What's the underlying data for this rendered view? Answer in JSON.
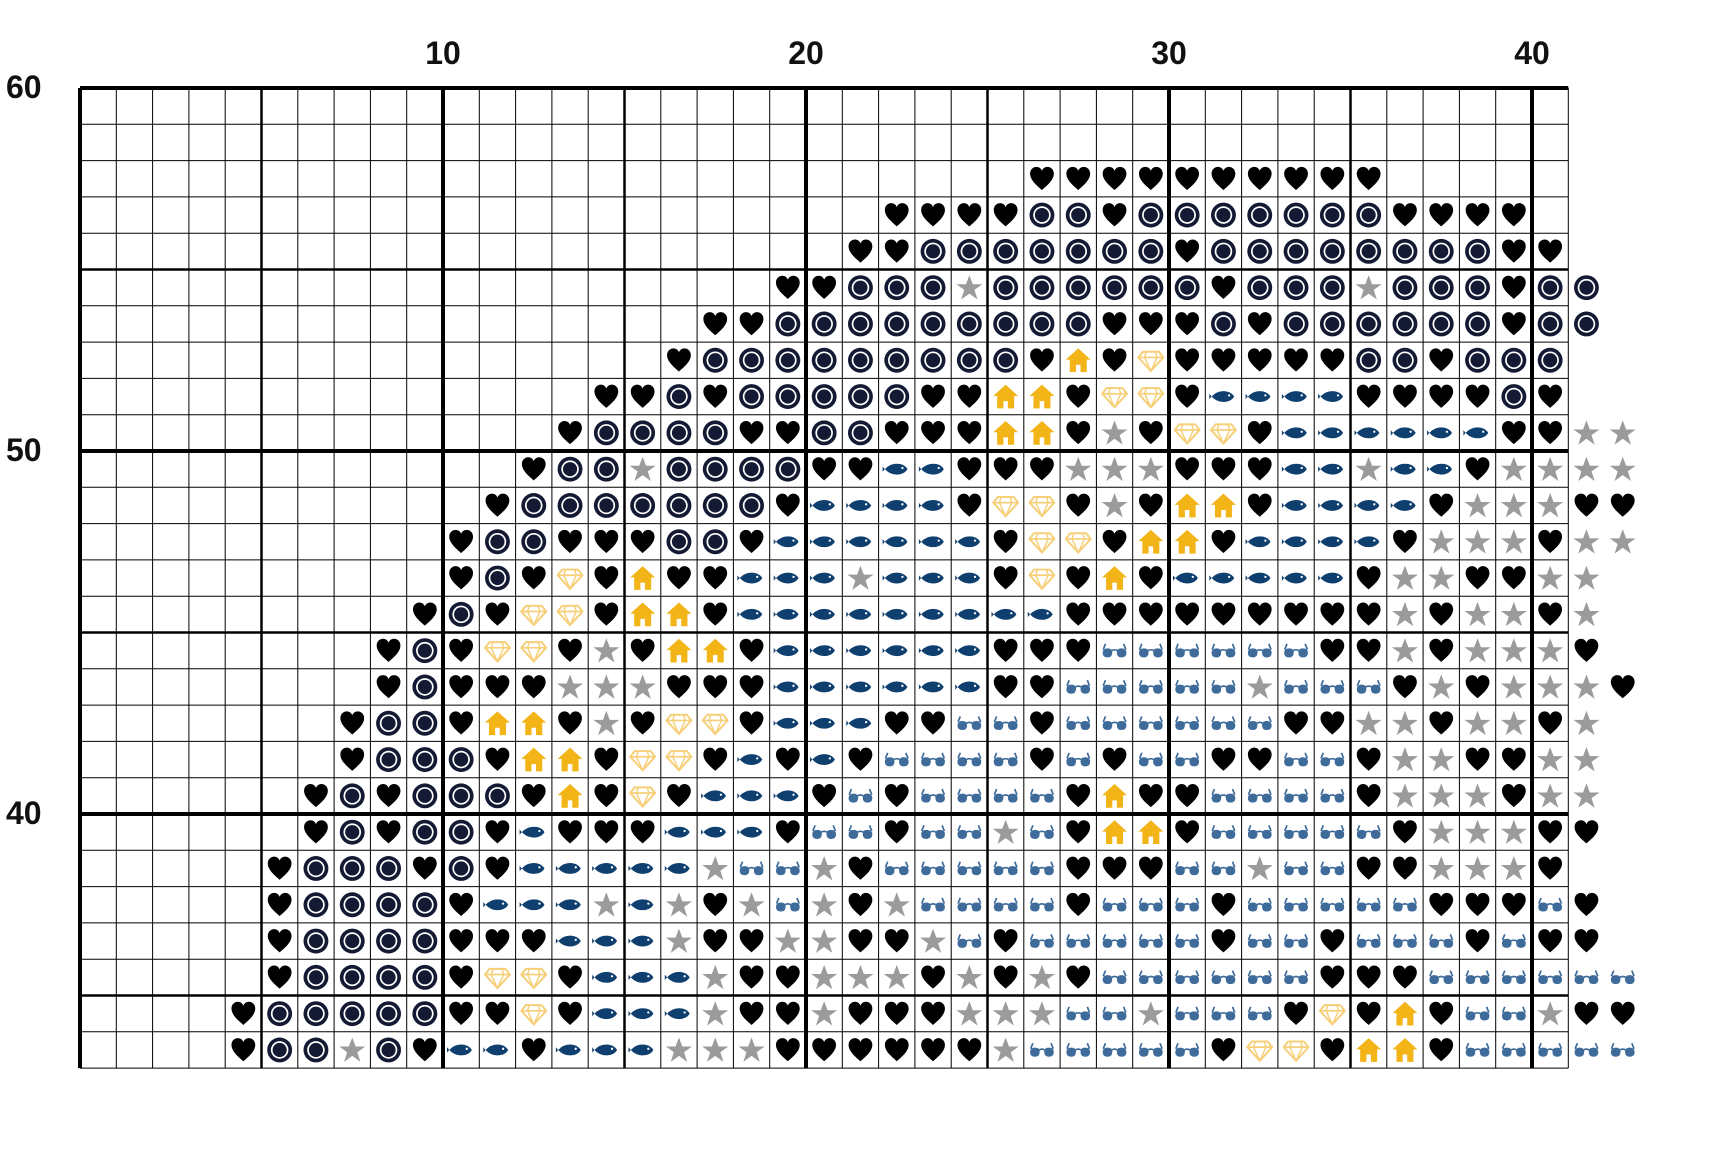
{
  "pattern": {
    "first_column": 1,
    "top_row": 60,
    "column_labels": [
      "10",
      "20",
      "30",
      "40"
    ],
    "row_labels": [
      "60",
      "50",
      "40"
    ],
    "legend": {
      "H": {
        "symbol": "heart",
        "color": "#000000"
      },
      "C": {
        "symbol": "ring",
        "color": "#141a33"
      },
      "S": {
        "symbol": "star",
        "color": "#9b9b9b"
      },
      "F": {
        "symbol": "fish",
        "color": "#0f3f6e"
      },
      "G": {
        "symbol": "glasses",
        "color": "#3e6b9a"
      },
      "D": {
        "symbol": "diamond",
        "color": "#f6cf78"
      },
      "K": {
        "symbol": "house",
        "color": "#f2b416"
      }
    },
    "rows": [
      ".........................................",
      ".........................................",
      "..........................HHHHHHHHHH.....",
      "......................HHHHCCHCCCCCCCHHHH.",
      ".....................HHCCCCCCCHCCCCCCCCHH",
      "...................HHCCCSCCCCCCHCCCSCCCHCC",
      ".................HHCCCCCCCCCHHHCHCCCCCCHCC",
      "................HCCCCCCCCCHKHDHHHHHCCHCCC",
      "..............HHCHCCCCCHHKKHDDHFFFFHHHHCH",
      ".............HCCCCHHCCHHHKKHSHDDHFFFFFFHHSS",
      "............HCCSCCCCHHFFHHHSSSHHHFFSFFHSSSS",
      "...........HCCCCCCCHFFFFHDDHSHKKHFFFFHSSSHH",
      "..........HCCHHHCCHFFFFFFHDDHKKHFFFFHSSSHSS",
      "..........HCHDHKHHFFFSFFFHDHKHFFFFFHSSHHSS",
      ".........HCHDDHKKHFFFFFFFFFHHHHHHHHHSHSSHS",
      "........HCHDDHSHKKHFFFFFFHHHGGGGGGHHSHSSSH",
      "........HCHHHSSSHHHFFFFFFHHGGGGGSGGGHSHSSSH",
      ".......HCCHKKHSHDDHFFFHHGGHGGGGGGHHSSHSSHS",
      ".......HCCCHKKHDDHFHFHGGGGHGHGGHHGGHSSHHSS",
      "......HCHCCCHKHDHFFFHGHGGGGHKHHGGGGHSSSHSS",
      "......HCHCCHFHHHFFFHGGHGGSGHKKHGGGGGHSSSHH",
      ".....HCCCHCHFFFFFSGGSHGGGGGHHHGGSGGHHSSSH",
      ".....HCCCCHFFFSFSHSGSHSGGGGHGGGHGGGGGHHHGH",
      ".....HCCCCHHHFFFSHHSSHHSGHGGGGGHGGHGGGHGHH",
      ".....HCCCCHDDHFFFSHHSSSHSHSHGGGGGGHHHGGGGGG",
      "....HCCCCCHHDHFFFSHHSHHHSSSGGSGGGHDHKHGGSHH",
      "....HCCSCHFFHFFFSSSHHHHHHSGGGGGHDDHKKHGGGGG"
    ]
  }
}
